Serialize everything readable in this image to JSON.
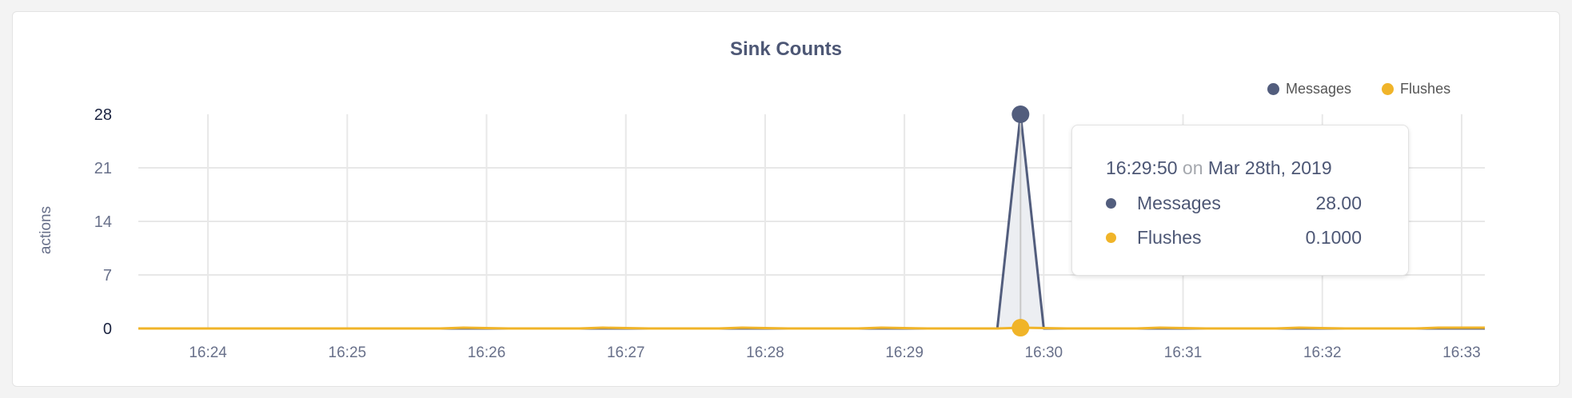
{
  "chart_data": {
    "type": "line",
    "title": "Sink Counts",
    "ylabel": "actions",
    "xlabel": "",
    "ylim": [
      0,
      28
    ],
    "yticks": [
      "0",
      "7",
      "14",
      "21",
      "28"
    ],
    "xlim": [
      "16:23:30",
      "16:33:10"
    ],
    "xticks": [
      "16:24",
      "16:25",
      "16:26",
      "16:27",
      "16:28",
      "16:29",
      "16:30",
      "16:31",
      "16:32",
      "16:33"
    ],
    "grid": true,
    "legend_position": "top-right",
    "series": [
      {
        "name": "Messages",
        "color": "#525d7d",
        "points": [
          [
            "16:23:30",
            0
          ],
          [
            "16:29:40",
            0
          ],
          [
            "16:29:50",
            28
          ],
          [
            "16:30:00",
            0
          ],
          [
            "16:33:10",
            0
          ]
        ]
      },
      {
        "name": "Flushes",
        "color": "#f0b429",
        "points": [
          [
            "16:23:30",
            0
          ],
          [
            "16:25:40",
            0
          ],
          [
            "16:25:50",
            0.1
          ],
          [
            "16:26:10",
            0
          ],
          [
            "16:26:40",
            0
          ],
          [
            "16:26:50",
            0.1
          ],
          [
            "16:27:10",
            0
          ],
          [
            "16:27:40",
            0
          ],
          [
            "16:27:50",
            0.1
          ],
          [
            "16:28:10",
            0
          ],
          [
            "16:28:40",
            0
          ],
          [
            "16:28:50",
            0.1
          ],
          [
            "16:29:10",
            0
          ],
          [
            "16:29:40",
            0
          ],
          [
            "16:29:50",
            0.1
          ],
          [
            "16:30:10",
            0
          ],
          [
            "16:30:40",
            0
          ],
          [
            "16:30:50",
            0.1
          ],
          [
            "16:31:10",
            0
          ],
          [
            "16:31:40",
            0
          ],
          [
            "16:31:50",
            0.1
          ],
          [
            "16:32:10",
            0
          ],
          [
            "16:32:40",
            0
          ],
          [
            "16:32:50",
            0.1
          ],
          [
            "16:33:10",
            0.1
          ]
        ]
      }
    ]
  },
  "tooltip": {
    "time": "16:29:50",
    "on": "on",
    "date": "Mar 28th, 2019",
    "rows": [
      {
        "label": "Messages",
        "value": "28.00",
        "color": "#525d7d"
      },
      {
        "label": "Flushes",
        "value": "0.1000",
        "color": "#f0b429"
      }
    ]
  }
}
